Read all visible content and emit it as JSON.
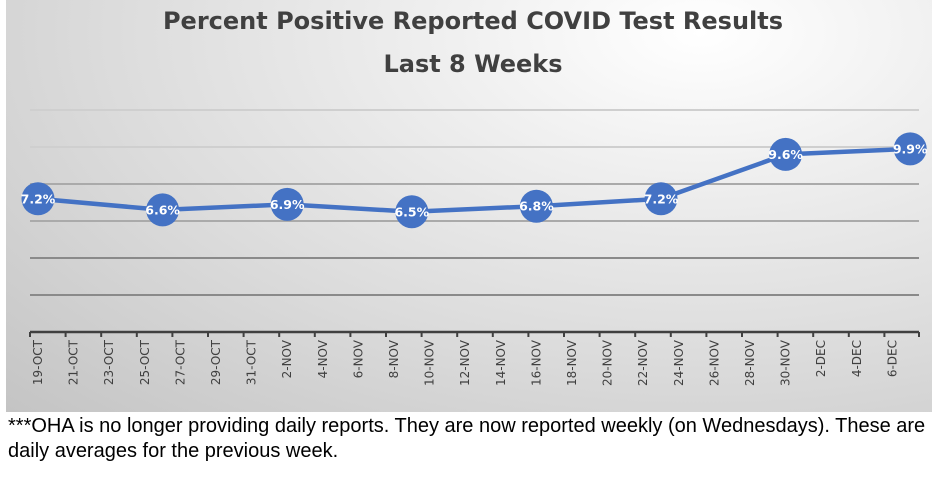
{
  "chart_data": {
    "type": "line",
    "title": "Percent Positive Reported COVID Test Results",
    "subtitle": "Last 8 Weeks",
    "xlabel": "",
    "ylabel": "",
    "ylim": [
      0,
      12
    ],
    "y_gridlines": [
      2,
      4,
      6,
      8,
      10,
      12
    ],
    "grid": true,
    "tick_labels": [
      "19-OCT",
      "21-OCT",
      "23-OCT",
      "25-OCT",
      "27-OCT",
      "29-OCT",
      "31-OCT",
      "2-NOV",
      "4-NOV",
      "6-NOV",
      "8-NOV",
      "10-NOV",
      "12-NOV",
      "14-NOV",
      "16-NOV",
      "18-NOV",
      "20-NOV",
      "22-NOV",
      "24-NOV",
      "26-NOV",
      "28-NOV",
      "30-NOV",
      "2-DEC",
      "4-DEC",
      "6-DEC"
    ],
    "series": [
      {
        "name": "Percent Positive",
        "color": "#4472C4",
        "day_offsets": [
          0,
          7,
          14,
          21,
          28,
          35,
          42,
          49
        ],
        "values": [
          7.2,
          6.6,
          6.9,
          6.5,
          6.8,
          7.2,
          9.6,
          9.9
        ],
        "labels": [
          "7.2%",
          "6.6%",
          "6.9%",
          "6.5%",
          "6.8%",
          "7.2%",
          "9.6%",
          "9.9%"
        ]
      }
    ]
  },
  "footnote": "***OHA is no longer providing daily reports.  They are now reported weekly (on Wednesdays). These are daily averages for the previous week."
}
